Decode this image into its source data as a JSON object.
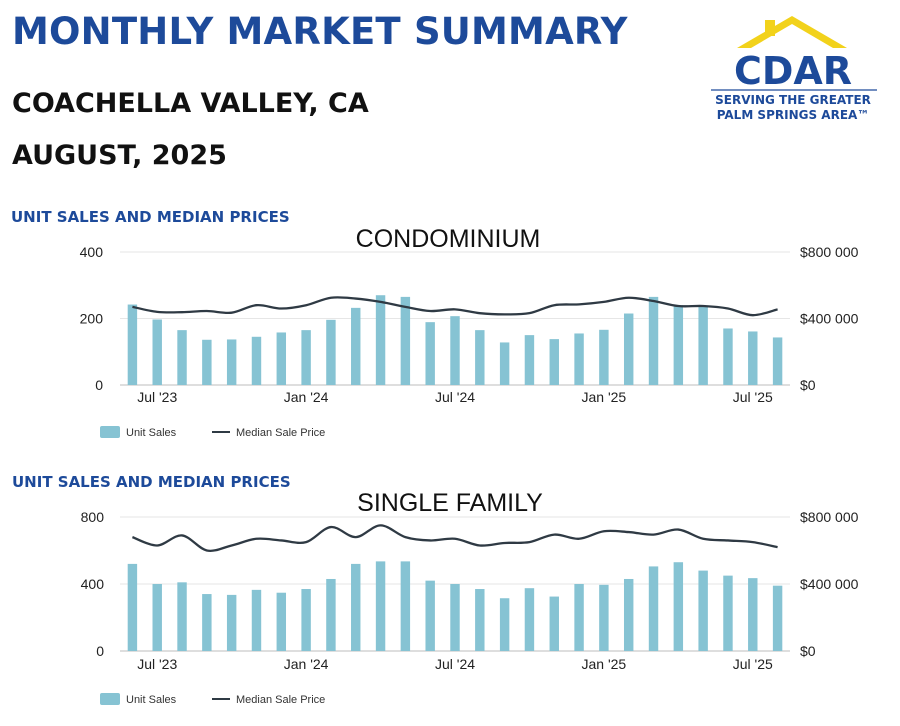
{
  "header": {
    "title": "MONTHLY MARKET SUMMARY",
    "location": "COACHELLA VALLEY, CA",
    "period": "AUGUST, 2025"
  },
  "logo": {
    "brand": "CDAR",
    "tagline_line1": "SERVING THE GREATER",
    "tagline_line2": "PALM SPRINGS AREA™",
    "roof_color": "#f2d21b",
    "brand_color": "#1d4a9a"
  },
  "colors": {
    "bars": "#86c3d3",
    "line": "#2f3a44",
    "heading": "#1d4a9a"
  },
  "chart_data": [
    {
      "type": "bar",
      "heading": "UNIT SALES AND MEDIAN PRICES",
      "title": "CONDOMINIUM",
      "months": [
        "Jun '23",
        "Jul '23",
        "Aug '23",
        "Sep '23",
        "Oct '23",
        "Nov '23",
        "Dec '23",
        "Jan '24",
        "Feb '24",
        "Mar '24",
        "Apr '24",
        "May '24",
        "Jun '24",
        "Jul '24",
        "Aug '24",
        "Sep '24",
        "Oct '24",
        "Nov '24",
        "Dec '24",
        "Jan '25",
        "Feb '25",
        "Mar '25",
        "Apr '25",
        "May '25",
        "Jun '25",
        "Jul '25",
        "Aug '25"
      ],
      "x_tick_labels": [
        "Jul '23",
        "Jan '24",
        "Jul '24",
        "Jan '25",
        "Jul '25"
      ],
      "x_tick_index": [
        1,
        7,
        13,
        19,
        25
      ],
      "series": [
        {
          "name": "Unit Sales",
          "axis": "left",
          "kind": "bar",
          "values": [
            242,
            197,
            165,
            136,
            137,
            145,
            158,
            165,
            196,
            232,
            270,
            265,
            189,
            207,
            165,
            128,
            150,
            138,
            155,
            166,
            215,
            265,
            240,
            238,
            170,
            161,
            143
          ]
        },
        {
          "name": "Median Sale Price",
          "axis": "right",
          "kind": "line",
          "values": [
            470000,
            440000,
            438000,
            445000,
            435000,
            480000,
            460000,
            480000,
            525000,
            520000,
            500000,
            470000,
            445000,
            455000,
            432000,
            425000,
            432000,
            480000,
            485000,
            500000,
            525000,
            505000,
            475000,
            475000,
            460000,
            420000,
            455000
          ]
        }
      ],
      "y_left": {
        "ylim": [
          0,
          400
        ],
        "ticks": [
          "0",
          "200",
          "400"
        ]
      },
      "y_right": {
        "ylim": [
          0,
          800000
        ],
        "ticks": [
          "$0",
          "$400 000",
          "$800 000"
        ]
      },
      "legend": {
        "position": "bottom-left",
        "items": [
          "Unit Sales",
          "Median Sale Price"
        ]
      }
    },
    {
      "type": "bar",
      "heading": "UNIT SALES AND MEDIAN PRICES",
      "title": "SINGLE FAMILY",
      "months": [
        "Jun '23",
        "Jul '23",
        "Aug '23",
        "Sep '23",
        "Oct '23",
        "Nov '23",
        "Dec '23",
        "Jan '24",
        "Feb '24",
        "Mar '24",
        "Apr '24",
        "May '24",
        "Jun '24",
        "Jul '24",
        "Aug '24",
        "Sep '24",
        "Oct '24",
        "Nov '24",
        "Dec '24",
        "Jan '25",
        "Feb '25",
        "Mar '25",
        "Apr '25",
        "May '25",
        "Jun '25",
        "Jul '25",
        "Aug '25"
      ],
      "x_tick_labels": [
        "Jul '23",
        "Jan '24",
        "Jul '24",
        "Jan '25",
        "Jul '25"
      ],
      "x_tick_index": [
        1,
        7,
        13,
        19,
        25
      ],
      "series": [
        {
          "name": "Unit Sales",
          "axis": "left",
          "kind": "bar",
          "values": [
            520,
            400,
            410,
            340,
            335,
            365,
            348,
            370,
            430,
            520,
            535,
            535,
            420,
            400,
            370,
            315,
            375,
            325,
            400,
            395,
            430,
            505,
            530,
            480,
            450,
            435,
            390
          ]
        },
        {
          "name": "Median Sale Price",
          "axis": "right",
          "kind": "line",
          "values": [
            680000,
            630000,
            690000,
            600000,
            630000,
            670000,
            660000,
            650000,
            740000,
            680000,
            750000,
            680000,
            660000,
            670000,
            630000,
            645000,
            650000,
            695000,
            670000,
            715000,
            710000,
            695000,
            725000,
            670000,
            660000,
            650000,
            620000
          ]
        }
      ],
      "y_left": {
        "ylim": [
          0,
          800
        ],
        "ticks": [
          "0",
          "400",
          "800"
        ]
      },
      "y_right": {
        "ylim": [
          0,
          800000
        ],
        "ticks": [
          "$0",
          "$400 000",
          "$800 000"
        ]
      },
      "legend": {
        "position": "bottom-left",
        "items": [
          "Unit Sales",
          "Median Sale Price"
        ]
      }
    }
  ]
}
